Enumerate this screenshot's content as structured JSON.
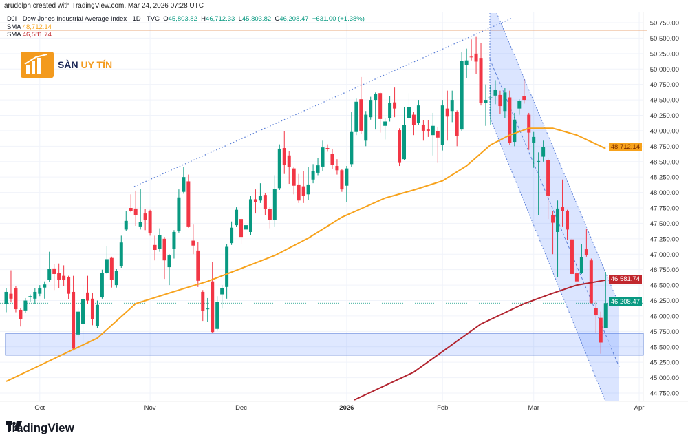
{
  "header": {
    "credit": "arudolph created with TradingView.com, Mar 24, 2026 07:28 UTC",
    "symbol": "DJI · Dow Jones Industrial Average Index · 1D · TVC",
    "open_label": "O",
    "open": "45,803.82",
    "high_label": "H",
    "high": "46,712.33",
    "low_label": "L",
    "low": "45,803.82",
    "close_label": "C",
    "close": "46,208.47",
    "change": "+631.00 (+1.38%)",
    "sma1_label": "SMA",
    "sma1_value": "48,712.14",
    "sma2_label": "SMA",
    "sma2_value": "46,581.74"
  },
  "logo": {
    "text_main": "SÀN ",
    "text_accent": "UY TÍN"
  },
  "footer": {
    "brand": "TradingView"
  },
  "colors": {
    "up": "#089981",
    "down": "#f23645",
    "sma1": "#f7a21b",
    "sma2": "#b2242f",
    "zone": "#2962ff",
    "resistance": "#e8a87c"
  },
  "price_tags": {
    "sma1": "48,712.14",
    "sma2": "46,581.74",
    "last": "46,208.47"
  },
  "chart_data": {
    "type": "candlestick",
    "interval": "1D",
    "ylim": [
      44600,
      50900
    ],
    "y_ticks": [
      "50,750.00",
      "50,500.00",
      "50,250.00",
      "50,000.00",
      "49,750.00",
      "49,500.00",
      "49,250.00",
      "49,000.00",
      "48,750.00",
      "48,500.00",
      "48,250.00",
      "48,000.00",
      "47,750.00",
      "47,500.00",
      "47,250.00",
      "47,000.00",
      "46,750.00",
      "46,500.00",
      "46,250.00",
      "46,000.00",
      "45,750.00",
      "45,500.00",
      "45,250.00",
      "45,000.00",
      "44,750.00"
    ],
    "x_ticks": [
      {
        "label": "Oct",
        "candle": 8
      },
      {
        "label": "Nov",
        "candle": 31
      },
      {
        "label": "Dec",
        "candle": 50
      },
      {
        "label": "2026",
        "candle": 72,
        "bold": true
      },
      {
        "label": "Feb",
        "candle": 92
      },
      {
        "label": "Mar",
        "candle": 111
      },
      {
        "label": "Apr",
        "candle": 133
      }
    ],
    "candles_ohlc": [
      [
        46200,
        46450,
        46060,
        46390
      ],
      [
        46360,
        46740,
        46220,
        46280
      ],
      [
        46450,
        46480,
        46060,
        46110
      ],
      [
        46100,
        46130,
        45830,
        45950
      ],
      [
        46090,
        46290,
        46050,
        46250
      ],
      [
        46310,
        46350,
        46230,
        46320
      ],
      [
        46280,
        46450,
        46200,
        46390
      ],
      [
        46360,
        46500,
        46320,
        46450
      ],
      [
        46460,
        46560,
        46280,
        46510
      ],
      [
        46580,
        47040,
        46550,
        46760
      ],
      [
        46770,
        46840,
        46420,
        46680
      ],
      [
        46700,
        46850,
        46450,
        46590
      ],
      [
        46650,
        46820,
        46480,
        46590
      ],
      [
        46630,
        46650,
        46270,
        46360
      ],
      [
        46390,
        46650,
        45440,
        45470
      ],
      [
        45700,
        46130,
        45650,
        46070
      ],
      [
        45870,
        46500,
        45450,
        46270
      ],
      [
        46380,
        46650,
        46200,
        46250
      ],
      [
        46280,
        46370,
        45850,
        45950
      ],
      [
        45840,
        46250,
        45800,
        46180
      ],
      [
        46300,
        46750,
        46280,
        46700
      ],
      [
        46700,
        47130,
        46680,
        46920
      ],
      [
        46940,
        46960,
        46460,
        46580
      ],
      [
        46500,
        46760,
        46460,
        46730
      ],
      [
        46810,
        47300,
        46780,
        47190
      ],
      [
        47400,
        47700,
        47380,
        47540
      ],
      [
        47750,
        47970,
        47680,
        47700
      ],
      [
        47740,
        48030,
        47460,
        47630
      ],
      [
        47450,
        48060,
        47400,
        47520
      ],
      [
        47660,
        47730,
        47390,
        47560
      ],
      [
        47700,
        47720,
        47300,
        47340
      ],
      [
        47150,
        47300,
        46900,
        47070
      ],
      [
        47090,
        47420,
        47040,
        47310
      ],
      [
        47250,
        47280,
        46600,
        46900
      ],
      [
        46790,
        47000,
        46500,
        46980
      ],
      [
        47090,
        47390,
        46930,
        47360
      ],
      [
        47380,
        48050,
        47350,
        47920
      ],
      [
        48010,
        48410,
        47980,
        48250
      ],
      [
        48180,
        48290,
        47430,
        47450
      ],
      [
        47220,
        47480,
        47000,
        47140
      ],
      [
        47060,
        47200,
        46470,
        46570
      ],
      [
        46390,
        46420,
        45920,
        46080
      ],
      [
        46120,
        46290,
        45900,
        46120
      ],
      [
        46560,
        46880,
        45720,
        45740
      ],
      [
        45790,
        46320,
        45760,
        46230
      ],
      [
        46350,
        46500,
        46120,
        46450
      ],
      [
        46470,
        47160,
        46280,
        47120
      ],
      [
        47180,
        47530,
        47150,
        47430
      ],
      [
        47470,
        47760,
        47440,
        47720
      ],
      [
        47570,
        47590,
        47170,
        47280
      ],
      [
        47400,
        47550,
        47200,
        47470
      ],
      [
        47360,
        47950,
        47310,
        47890
      ],
      [
        47890,
        48050,
        47660,
        47850
      ],
      [
        47870,
        48150,
        47830,
        47950
      ],
      [
        47960,
        47990,
        47630,
        47730
      ],
      [
        47730,
        47760,
        47420,
        47550
      ],
      [
        47560,
        48280,
        47450,
        48060
      ],
      [
        48070,
        48780,
        48040,
        48710
      ],
      [
        48720,
        48990,
        48300,
        48450
      ],
      [
        48600,
        48670,
        48140,
        48410
      ],
      [
        48390,
        48420,
        47970,
        48110
      ],
      [
        48130,
        48300,
        47830,
        47870
      ],
      [
        48100,
        48350,
        47830,
        47950
      ],
      [
        47970,
        48410,
        47880,
        48130
      ],
      [
        48210,
        48460,
        48150,
        48350
      ],
      [
        48320,
        48560,
        48280,
        48440
      ],
      [
        48420,
        48840,
        48350,
        48730
      ],
      [
        48720,
        48780,
        48660,
        48700
      ],
      [
        48630,
        48700,
        48380,
        48450
      ],
      [
        48430,
        48540,
        48290,
        48360
      ],
      [
        48360,
        48380,
        48010,
        48050
      ],
      [
        48110,
        48430,
        47850,
        48390
      ],
      [
        48460,
        49300,
        48420,
        48980
      ],
      [
        48980,
        49520,
        48930,
        49470
      ],
      [
        49510,
        49870,
        48950,
        49000
      ],
      [
        48840,
        49320,
        48750,
        49260
      ],
      [
        49220,
        49550,
        49180,
        49500
      ],
      [
        49500,
        49620,
        49020,
        49590
      ],
      [
        49610,
        49620,
        48970,
        49190
      ],
      [
        49080,
        49200,
        48860,
        49150
      ],
      [
        49200,
        49560,
        49150,
        49450
      ],
      [
        49460,
        49700,
        49220,
        49360
      ],
      [
        49010,
        49040,
        48430,
        48480
      ],
      [
        48540,
        49380,
        48520,
        49090
      ],
      [
        49200,
        49610,
        49170,
        49380
      ],
      [
        49260,
        49300,
        48930,
        49090
      ],
      [
        49130,
        49500,
        49100,
        49410
      ],
      [
        49100,
        49170,
        48840,
        49000
      ],
      [
        49020,
        49170,
        48900,
        49000
      ],
      [
        48930,
        49290,
        48600,
        49080
      ],
      [
        48990,
        49060,
        48480,
        48890
      ],
      [
        48770,
        49500,
        48680,
        49410
      ],
      [
        49360,
        49650,
        48840,
        49230
      ],
      [
        49320,
        49650,
        49140,
        49500
      ],
      [
        49310,
        49330,
        48750,
        48910
      ],
      [
        49020,
        50270,
        48990,
        50130
      ],
      [
        50060,
        50330,
        49850,
        50140
      ],
      [
        50200,
        50480,
        50140,
        50190
      ],
      [
        50250,
        50520,
        49920,
        50120
      ],
      [
        50180,
        50420,
        49410,
        49450
      ],
      [
        49450,
        49750,
        49080,
        49500
      ],
      [
        49530,
        49740,
        49100,
        49540
      ],
      [
        49570,
        49820,
        49430,
        49660
      ],
      [
        49580,
        49650,
        49270,
        49400
      ],
      [
        49320,
        49690,
        49200,
        49620
      ],
      [
        49540,
        49650,
        48770,
        48800
      ],
      [
        48820,
        49290,
        48750,
        49180
      ],
      [
        49360,
        49510,
        49260,
        49480
      ],
      [
        49560,
        49830,
        49440,
        49500
      ],
      [
        49260,
        49290,
        48690,
        48970
      ],
      [
        48800,
        48980,
        48400,
        48900
      ],
      [
        48500,
        48650,
        47630,
        48510
      ],
      [
        48580,
        48840,
        48500,
        48740
      ],
      [
        48520,
        48550,
        47570,
        47950
      ],
      [
        47630,
        47700,
        47000,
        47510
      ],
      [
        47360,
        47870,
        46630,
        47740
      ],
      [
        47770,
        48210,
        47450,
        47700
      ],
      [
        47700,
        47720,
        47230,
        47400
      ],
      [
        47240,
        47260,
        46650,
        46680
      ],
      [
        46690,
        46860,
        46540,
        46560
      ],
      [
        46700,
        47170,
        46680,
        46950
      ],
      [
        47080,
        47410,
        46960,
        46990
      ],
      [
        46900,
        46930,
        46190,
        46210
      ],
      [
        46130,
        46240,
        45730,
        46010
      ],
      [
        45970,
        46070,
        45390,
        45570
      ],
      [
        45803.82,
        46712.33,
        45803.82,
        46208.47
      ]
    ],
    "series": [
      {
        "name": "SMA",
        "value_label": "48,712.14",
        "points": [
          [
            0,
            44940
          ],
          [
            13,
            45420
          ],
          [
            19,
            45640
          ],
          [
            27,
            46200
          ],
          [
            36,
            46420
          ],
          [
            42,
            46560
          ],
          [
            48,
            46740
          ],
          [
            56,
            46980
          ],
          [
            63,
            47260
          ],
          [
            70,
            47600
          ],
          [
            79,
            47910
          ],
          [
            85,
            48040
          ],
          [
            91,
            48190
          ],
          [
            96,
            48430
          ],
          [
            101,
            48770
          ],
          [
            105,
            48930
          ],
          [
            109,
            49040
          ],
          [
            114,
            49040
          ],
          [
            119,
            48930
          ],
          [
            125,
            48712.14
          ]
        ]
      },
      {
        "name": "SMA",
        "value_label": "46,581.74",
        "points": [
          [
            72.6,
            44640
          ],
          [
            85,
            45090
          ],
          [
            92,
            45480
          ],
          [
            99,
            45870
          ],
          [
            108,
            46200
          ],
          [
            114,
            46370
          ],
          [
            119,
            46500
          ],
          [
            125,
            46581.74
          ]
        ]
      }
    ],
    "annotations": {
      "resistance_level": 50630,
      "support_zone": [
        45365,
        45720
      ],
      "last_price": 46208.47
    }
  }
}
